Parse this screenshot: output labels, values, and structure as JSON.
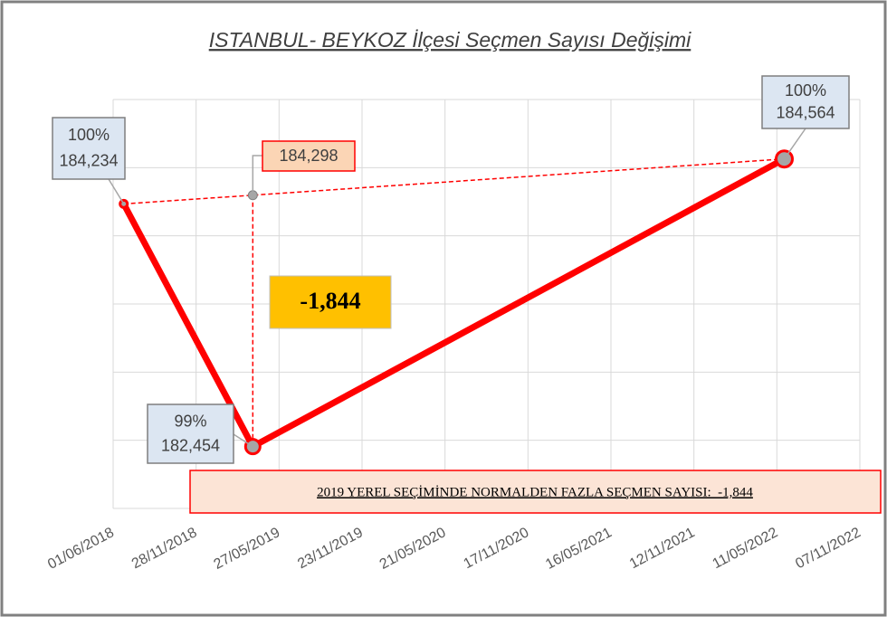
{
  "chart_data": {
    "type": "line",
    "title": "ISTANBUL- BEYKOZ İlçesi Seçmen Sayısı Değişimi",
    "x": [
      "24/06/2018",
      "31/03/2019",
      "27/05/2022"
    ],
    "series": [
      {
        "color": "#ff0000",
        "values": [
          184234,
          182454,
          184564
        ],
        "value_labels": [
          "184,234",
          "182,454",
          "184,564"
        ],
        "percent_labels": [
          "100%",
          "99%",
          "100%"
        ]
      }
    ],
    "reference_point": {
      "x": "31/03/2019",
      "value": 184298,
      "value_label": "184,298"
    },
    "difference": {
      "value": -1844,
      "label": "-1,844"
    },
    "note": "2019 YEREL SEÇİMİNDE NORMALDEN FAZLA SEÇMEN SAYISI:  -1,844",
    "xlim": [
      "01/06/2018",
      "07/11/2022"
    ],
    "xticks": [
      "01/06/2018",
      "28/11/2018",
      "27/05/2019",
      "23/11/2019",
      "21/05/2020",
      "17/11/2020",
      "16/05/2021",
      "12/11/2021",
      "11/05/2022",
      "07/11/2022"
    ],
    "ylim": [
      182000,
      185000
    ],
    "yticks": [
      182000,
      182500,
      183000,
      183500,
      184000,
      184500,
      185000
    ],
    "grid": true
  }
}
